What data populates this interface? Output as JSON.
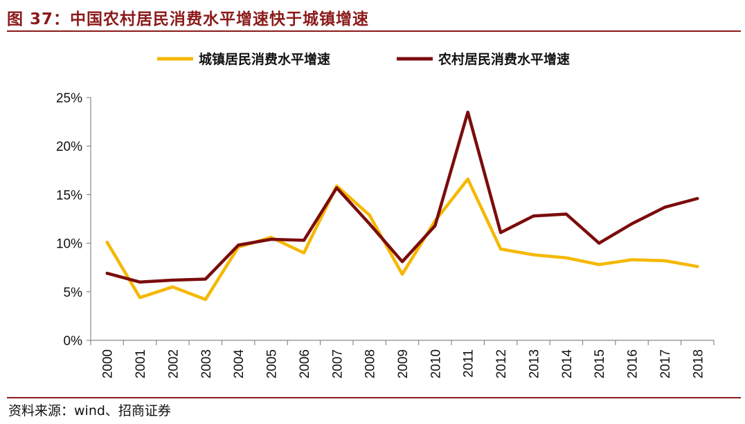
{
  "header": {
    "title": "图 37：中国农村居民消费水平增速快于城镇增速"
  },
  "footer": {
    "source": "资料来源：wind、招商证券"
  },
  "chart_data": {
    "type": "line",
    "title": "",
    "xlabel": "",
    "ylabel": "",
    "x": [
      "2000",
      "2001",
      "2002",
      "2003",
      "2004",
      "2005",
      "2006",
      "2007",
      "2008",
      "2009",
      "2010",
      "2011",
      "2012",
      "2013",
      "2014",
      "2015",
      "2016",
      "2017",
      "2018"
    ],
    "series": [
      {
        "name": "城镇居民消费水平增速",
        "color": "#f5b800",
        "values": [
          10.1,
          4.4,
          5.5,
          4.2,
          9.6,
          10.6,
          9.0,
          15.9,
          12.9,
          6.8,
          12.3,
          16.6,
          9.4,
          8.8,
          8.5,
          7.8,
          8.3,
          8.2,
          7.6
        ]
      },
      {
        "name": "农村居民消费水平增速",
        "color": "#7b0c0c",
        "values": [
          6.9,
          6.0,
          6.2,
          6.3,
          9.8,
          10.4,
          10.3,
          15.7,
          12.0,
          8.1,
          11.8,
          23.5,
          11.1,
          12.8,
          13.0,
          10.0,
          12.0,
          13.7,
          14.6
        ]
      }
    ],
    "ylim": [
      0,
      25
    ],
    "yticks": [
      "0%",
      "5%",
      "10%",
      "15%",
      "20%",
      "25%"
    ],
    "grid": false,
    "legend_position": "top"
  }
}
